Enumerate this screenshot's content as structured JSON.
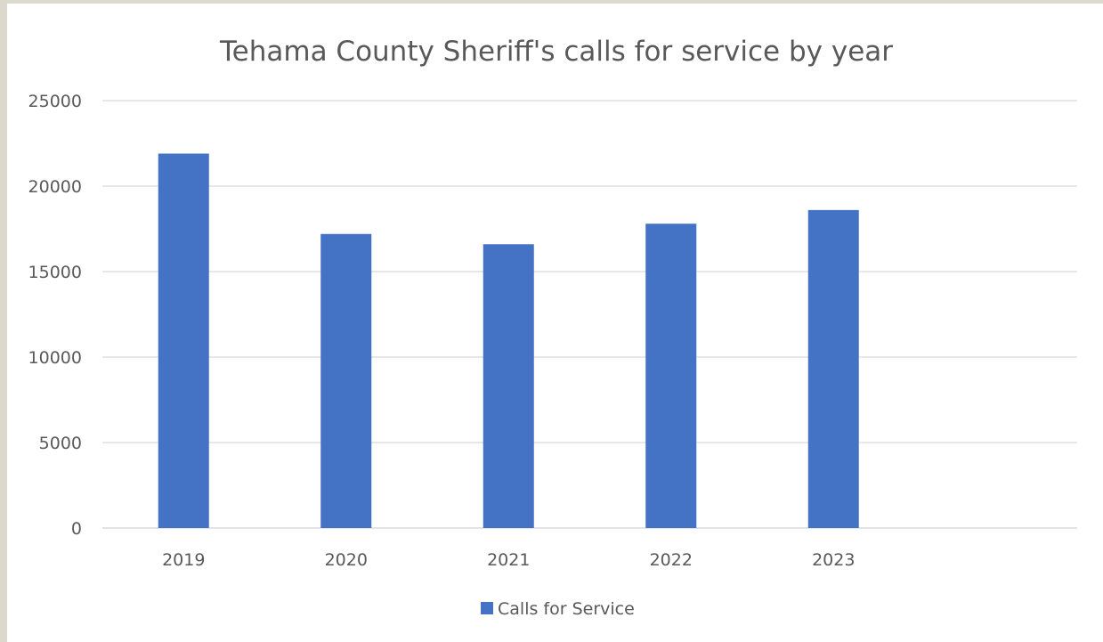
{
  "chart_data": {
    "type": "bar",
    "title": "Tehama County Sheriff's calls for service by year",
    "xlabel": "",
    "ylabel": "",
    "categories": [
      "2019",
      "2020",
      "2021",
      "2022",
      "2023",
      ""
    ],
    "series": [
      {
        "name": "Calls for Service",
        "values": [
          21900,
          17200,
          16600,
          17800,
          18600,
          null
        ],
        "color": "#4472c4"
      }
    ],
    "ylim": [
      0,
      25000
    ],
    "yticks": [
      "0",
      "5000",
      "10000",
      "15000",
      "20000",
      "25000"
    ],
    "grid": true,
    "legend_position": "bottom",
    "colors": {
      "bar": "#4472c4",
      "grid": "#d9d9d9",
      "text": "#595959"
    }
  }
}
